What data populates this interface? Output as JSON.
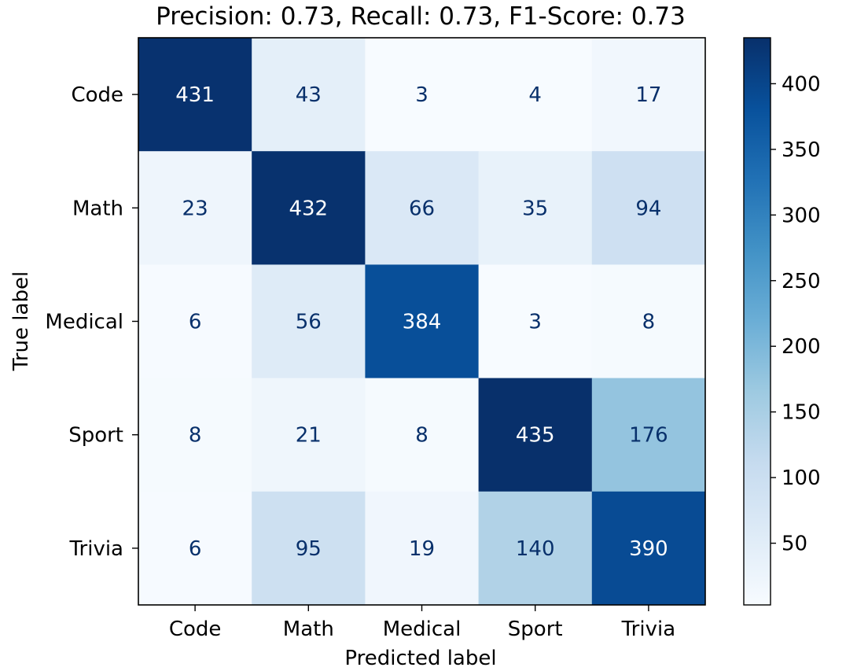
{
  "chart_data": {
    "type": "heatmap",
    "title": "Precision: 0.73, Recall: 0.73, F1-Score: 0.73",
    "xlabel": "Predicted label",
    "ylabel": "True label",
    "x_categories": [
      "Code",
      "Math",
      "Medical",
      "Sport",
      "Trivia"
    ],
    "y_categories": [
      "Code",
      "Math",
      "Medical",
      "Sport",
      "Trivia"
    ],
    "values": [
      [
        431,
        43,
        3,
        4,
        17
      ],
      [
        23,
        432,
        66,
        35,
        94
      ],
      [
        6,
        56,
        384,
        3,
        8
      ],
      [
        8,
        21,
        8,
        435,
        176
      ],
      [
        6,
        95,
        19,
        140,
        390
      ]
    ],
    "colormap": "Blues",
    "colorbar": {
      "min": 3,
      "max": 435,
      "ticks": [
        50,
        100,
        150,
        200,
        250,
        300,
        350,
        400
      ]
    },
    "grid": false
  }
}
